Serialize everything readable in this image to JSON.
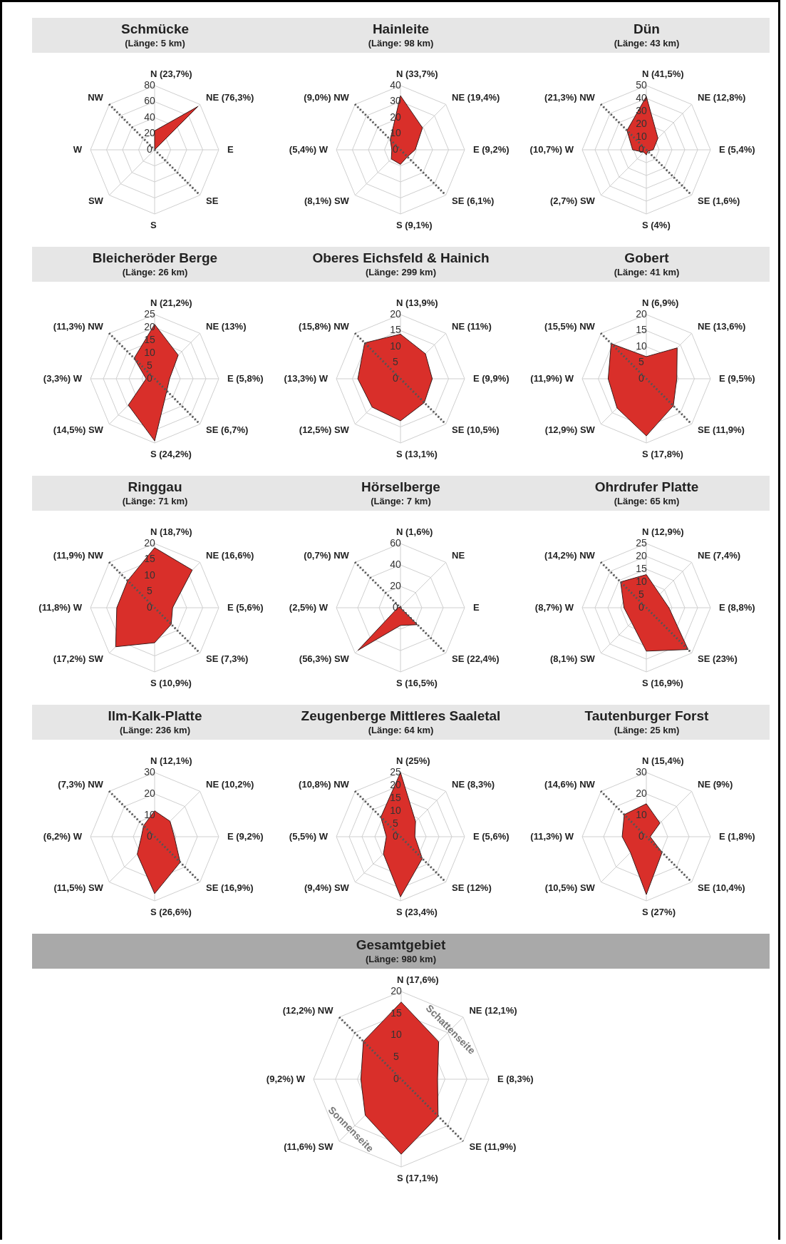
{
  "chart_data": [
    {
      "type": "radar",
      "title": "Schmücke",
      "subtitle": "(Länge: 5 km)",
      "categories": [
        "N (23,7%)",
        "NE (76,3%)",
        "E",
        "SE",
        "S",
        "SW",
        "W",
        "NW"
      ],
      "ylim": [
        0,
        80
      ],
      "yticks": [
        0,
        20,
        40,
        60,
        80
      ],
      "grid": true,
      "series": [
        {
          "color": "#d92f2a",
          "values": [
            23.7,
            76.3,
            0,
            0,
            0,
            0,
            0,
            0
          ]
        }
      ]
    },
    {
      "type": "radar",
      "title": "Hainleite",
      "subtitle": "(Länge: 98 km)",
      "categories": [
        "N (33,7%)",
        "NE (19,4%)",
        "E (9,2%)",
        "SE (6,1%)",
        "S (9,1%)",
        "(8,1%) SW",
        "(5,4%) W",
        "(9,0%) NW"
      ],
      "ylim": [
        0,
        40
      ],
      "yticks": [
        0,
        10,
        20,
        30,
        40
      ],
      "grid": true,
      "series": [
        {
          "color": "#d92f2a",
          "values": [
            33.7,
            19.4,
            9.2,
            6.1,
            9.1,
            8.1,
            5.4,
            9.0
          ]
        }
      ]
    },
    {
      "type": "radar",
      "title": "Dün",
      "subtitle": "(Länge: 43 km)",
      "categories": [
        "N (41,5%)",
        "NE (12,8%)",
        "E (5,4%)",
        "SE (1,6%)",
        "S (4%)",
        "(2,7%) SW",
        "(10,7%) W",
        "(21,3%) NW"
      ],
      "ylim": [
        0,
        50
      ],
      "yticks": [
        0,
        10,
        20,
        30,
        40,
        50
      ],
      "grid": true,
      "series": [
        {
          "color": "#d92f2a",
          "values": [
            41.5,
            12.8,
            5.4,
            1.6,
            4,
            2.7,
            10.7,
            21.3
          ]
        }
      ]
    },
    {
      "type": "radar",
      "title": "Bleicheröder Berge",
      "subtitle": "(Länge: 26 km)",
      "categories": [
        "N (21,2%)",
        "NE (13%)",
        "E (5,8%)",
        "SE (6,7%)",
        "S (24,2%)",
        "(14,5%) SW",
        "(3,3%) W",
        "(11,3%) NW"
      ],
      "ylim": [
        0,
        25
      ],
      "yticks": [
        0,
        5,
        10,
        15,
        20,
        25
      ],
      "grid": true,
      "series": [
        {
          "color": "#d92f2a",
          "values": [
            21.2,
            13,
            5.8,
            6.7,
            24.2,
            14.5,
            3.3,
            11.3
          ]
        }
      ]
    },
    {
      "type": "radar",
      "title": "Oberes Eichsfeld & Hainich",
      "subtitle": "(Länge: 299 km)",
      "categories": [
        "N (13,9%)",
        "NE (11%)",
        "E (9,9%)",
        "SE (10,5%)",
        "S (13,1%)",
        "(12,5%) SW",
        "(13,3%) W",
        "(15,8%) NW"
      ],
      "ylim": [
        0,
        20
      ],
      "yticks": [
        0,
        5,
        10,
        15,
        20
      ],
      "grid": true,
      "series": [
        {
          "color": "#d92f2a",
          "values": [
            13.9,
            11,
            9.9,
            10.5,
            13.1,
            12.5,
            13.3,
            15.8
          ]
        }
      ]
    },
    {
      "type": "radar",
      "title": "Gobert",
      "subtitle": "(Länge: 41 km)",
      "categories": [
        "N (6,9%)",
        "NE (13,6%)",
        "E (9,5%)",
        "SE (11,9%)",
        "S (17,8%)",
        "(12,9%) SW",
        "(11,9%) W",
        "(15,5%) NW"
      ],
      "ylim": [
        0,
        20
      ],
      "yticks": [
        0,
        5,
        10,
        15,
        20
      ],
      "grid": true,
      "series": [
        {
          "color": "#d92f2a",
          "values": [
            6.9,
            13.6,
            9.5,
            11.9,
            17.8,
            12.9,
            11.9,
            15.5
          ]
        }
      ]
    },
    {
      "type": "radar",
      "title": "Ringgau",
      "subtitle": "(Länge: 71 km)",
      "categories": [
        "N (18,7%)",
        "NE (16,6%)",
        "E (5,6%)",
        "SE (7,3%)",
        "S (10,9%)",
        "(17,2%) SW",
        "(11,8%) W",
        "(11,9%) NW"
      ],
      "ylim": [
        0,
        20
      ],
      "yticks": [
        0,
        5,
        10,
        15,
        20
      ],
      "grid": true,
      "series": [
        {
          "color": "#d92f2a",
          "values": [
            18.7,
            16.6,
            5.6,
            7.3,
            10.9,
            17.2,
            11.8,
            11.9
          ]
        }
      ]
    },
    {
      "type": "radar",
      "title": "Hörselberge",
      "subtitle": "(Länge: 7 km)",
      "categories": [
        "N (1,6%)",
        "NE",
        "E",
        "SE (22,4%)",
        "S (16,5%)",
        "(56,3%) SW",
        "(2,5%) W",
        "(0,7%) NW"
      ],
      "ylim": [
        0,
        60
      ],
      "yticks": [
        0,
        20,
        40,
        60
      ],
      "grid": true,
      "series": [
        {
          "color": "#d92f2a",
          "values": [
            1.6,
            0,
            0,
            22.4,
            16.5,
            56.3,
            2.5,
            0.7
          ]
        }
      ]
    },
    {
      "type": "radar",
      "title": "Ohrdrufer Platte",
      "subtitle": "(Länge: 65 km)",
      "categories": [
        "N (12,9%)",
        "NE (7,4%)",
        "E (8,8%)",
        "SE (23%)",
        "S (16,9%)",
        "(8,1%) SW",
        "(8,7%) W",
        "(14,2%) NW"
      ],
      "ylim": [
        0,
        25
      ],
      "yticks": [
        0,
        5,
        10,
        15,
        20,
        25
      ],
      "grid": true,
      "series": [
        {
          "color": "#d92f2a",
          "values": [
            12.9,
            7.4,
            8.8,
            23,
            16.9,
            8.1,
            8.7,
            14.2
          ]
        }
      ]
    },
    {
      "type": "radar",
      "title": "Ilm-Kalk-Platte",
      "subtitle": "(Länge: 236 km)",
      "categories": [
        "N (12,1%)",
        "NE (10,2%)",
        "E (9,2%)",
        "SE (16,9%)",
        "S (26,6%)",
        "(11,5%) SW",
        "(6,2%) W",
        "(7,3%) NW"
      ],
      "ylim": [
        0,
        30
      ],
      "yticks": [
        0,
        10,
        20,
        30
      ],
      "grid": true,
      "series": [
        {
          "color": "#d92f2a",
          "values": [
            12.1,
            10.2,
            9.2,
            16.9,
            26.6,
            11.5,
            6.2,
            7.3
          ]
        }
      ]
    },
    {
      "type": "radar",
      "title": "Zeugenberge Mittleres Saaletal",
      "subtitle": "(Länge: 64 km)",
      "categories": [
        "N (25%)",
        "NE (8,3%)",
        "E (5,6%)",
        "SE (12%)",
        "S (23,4%)",
        "(9,4%) SW",
        "(5,5%) W",
        "(10,8%) NW"
      ],
      "ylim": [
        0,
        25
      ],
      "yticks": [
        0,
        5,
        10,
        15,
        20,
        25
      ],
      "grid": true,
      "series": [
        {
          "color": "#d92f2a",
          "values": [
            25,
            8.3,
            5.6,
            12,
            23.4,
            9.4,
            5.5,
            10.8
          ]
        }
      ]
    },
    {
      "type": "radar",
      "title": "Tautenburger Forst",
      "subtitle": "(Länge: 25 km)",
      "categories": [
        "N (15,4%)",
        "NE (9%)",
        "E (1,8%)",
        "SE (10,4%)",
        "S (27%)",
        "(10,5%) SW",
        "(11,3%) W",
        "(14,6%) NW"
      ],
      "ylim": [
        0,
        30
      ],
      "yticks": [
        0,
        10,
        20,
        30
      ],
      "grid": true,
      "series": [
        {
          "color": "#d92f2a",
          "values": [
            15.4,
            9,
            1.8,
            10.4,
            27,
            10.5,
            11.3,
            14.6
          ]
        }
      ]
    },
    {
      "type": "radar",
      "title": "Gesamtgebiet",
      "subtitle": "(Länge: 980 km)",
      "categories": [
        "N (17,6%)",
        "NE (12,1%)",
        "E (8,3%)",
        "SE (11,9%)",
        "S (17,1%)",
        "(11,6%) SW",
        "(9,2%) W",
        "(12,2%) NW"
      ],
      "ylim": [
        0,
        20
      ],
      "yticks": [
        0,
        5,
        10,
        15,
        20
      ],
      "grid": true,
      "annotations": [
        "Schattenseite",
        "Sonnenseite"
      ],
      "series": [
        {
          "color": "#d92f2a",
          "values": [
            17.6,
            12.1,
            8.3,
            11.9,
            17.1,
            11.6,
            9.2,
            12.2
          ]
        }
      ]
    }
  ]
}
